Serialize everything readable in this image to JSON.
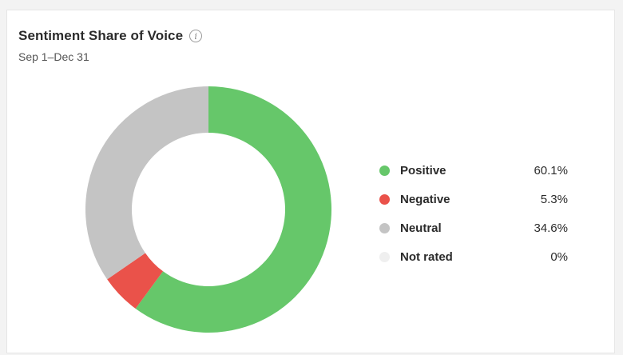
{
  "card": {
    "title": "Sentiment Share of Voice",
    "subtitle": "Sep 1–Dec 31",
    "info_icon": "info-icon"
  },
  "colors": {
    "positive": "#66c76a",
    "negative": "#ea524a",
    "neutral": "#c4c4c4",
    "not_rated": "#efefef"
  },
  "chart_data": {
    "type": "pie",
    "variant": "donut",
    "title": "Sentiment Share of Voice",
    "subtitle": "Sep 1–Dec 31",
    "legend_placement": "right",
    "categories": [
      "Positive",
      "Negative",
      "Neutral",
      "Not rated"
    ],
    "values": [
      60.1,
      5.3,
      34.6,
      0
    ],
    "value_labels": [
      "60.1%",
      "5.3%",
      "34.6%",
      "0%"
    ],
    "colors": [
      "#66c76a",
      "#ea524a",
      "#c4c4c4",
      "#efefef"
    ]
  }
}
